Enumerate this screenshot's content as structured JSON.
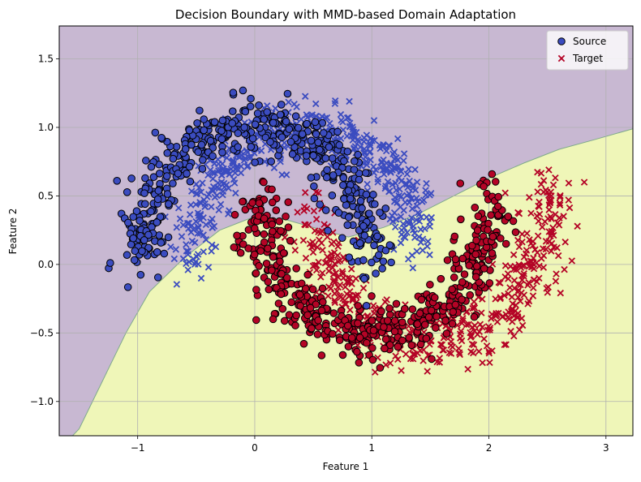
{
  "chart_data": {
    "type": "scatter",
    "title": "Decision Boundary with MMD-based Domain Adaptation",
    "xlabel": "Feature 1",
    "ylabel": "Feature 2",
    "xlim": [
      -1.67,
      3.23
    ],
    "ylim": [
      -1.25,
      1.74
    ],
    "xticks": [
      -1,
      0,
      1,
      2,
      3
    ],
    "yticks": [
      -1.0,
      -0.5,
      0.0,
      0.5,
      1.0,
      1.5
    ],
    "xtick_labels": [
      "−1",
      "0",
      "1",
      "2",
      "3"
    ],
    "ytick_labels": [
      "−1.0",
      "−0.5",
      "0.0",
      "0.5",
      "1.0",
      "1.5"
    ],
    "grid": true,
    "legend": {
      "placement": "top-right",
      "entries": [
        {
          "label": "Source",
          "marker": "circle"
        },
        {
          "label": "Target",
          "marker": "x"
        }
      ]
    },
    "colors": {
      "class0": "#3b4cc0",
      "class1": "#b40426",
      "region0": "#c8b8d2",
      "region1": "#eff6b8",
      "boundary": "#7faa8a",
      "grid": "#b0b0b0"
    },
    "decision_boundary": [
      [
        -1.67,
        -1.35
      ],
      [
        -1.5,
        -1.2
      ],
      [
        -1.3,
        -0.85
      ],
      [
        -1.1,
        -0.5
      ],
      [
        -0.9,
        -0.2
      ],
      [
        -0.6,
        0.05
      ],
      [
        -0.3,
        0.25
      ],
      [
        0.0,
        0.35
      ],
      [
        0.25,
        0.33
      ],
      [
        0.5,
        0.27
      ],
      [
        0.8,
        0.2
      ],
      [
        1.1,
        0.27
      ],
      [
        1.4,
        0.37
      ],
      [
        1.7,
        0.5
      ],
      [
        2.0,
        0.63
      ],
      [
        2.3,
        0.74
      ],
      [
        2.6,
        0.84
      ],
      [
        2.9,
        0.91
      ],
      [
        3.23,
        0.99
      ]
    ],
    "series": [
      {
        "name": "Source",
        "marker": "circle",
        "description_shape": "two interleaving moons",
        "class0_arc": {
          "center": [
            0.0,
            0.0
          ],
          "radius": 1.0,
          "theta_range_deg": [
            0,
            180
          ],
          "noise": 0.1
        },
        "class1_arc": {
          "center": [
            1.0,
            0.5
          ],
          "radius": 1.0,
          "theta_range_deg": [
            180,
            360
          ],
          "noise": 0.1
        },
        "sample_points_class0": [
          [
            -1.05,
            0.1
          ],
          [
            -0.95,
            0.45
          ],
          [
            -0.8,
            0.7
          ],
          [
            -0.6,
            0.85
          ],
          [
            -0.35,
            0.95
          ],
          [
            0.0,
            1.0
          ],
          [
            0.35,
            0.95
          ],
          [
            0.6,
            0.8
          ],
          [
            0.8,
            0.6
          ],
          [
            0.95,
            0.3
          ],
          [
            1.0,
            0.05
          ]
        ],
        "sample_points_class1": [
          [
            0.0,
            0.45
          ],
          [
            0.05,
            0.1
          ],
          [
            0.2,
            -0.2
          ],
          [
            0.5,
            -0.4
          ],
          [
            0.85,
            -0.5
          ],
          [
            1.2,
            -0.45
          ],
          [
            1.5,
            -0.35
          ],
          [
            1.8,
            -0.1
          ],
          [
            1.95,
            0.2
          ],
          [
            2.0,
            0.5
          ]
        ]
      },
      {
        "name": "Target",
        "marker": "x",
        "description_shape": "two interleaving moons, shifted and rotated",
        "class0_arc": {
          "center": [
            0.45,
            0.05
          ],
          "radius": 0.95,
          "theta_range_deg": [
            5,
            180
          ],
          "noise": 0.1
        },
        "class1_arc": {
          "center": [
            1.5,
            0.45
          ],
          "radius": 1.0,
          "theta_range_deg": [
            185,
            368
          ],
          "noise": 0.12
        },
        "sample_points_class0": [
          [
            -0.55,
            -0.1
          ],
          [
            -0.4,
            0.5
          ],
          [
            -0.1,
            0.85
          ],
          [
            0.3,
            1.0
          ],
          [
            0.7,
            1.0
          ],
          [
            1.0,
            0.85
          ],
          [
            1.25,
            0.6
          ],
          [
            1.4,
            0.3
          ],
          [
            1.5,
            0.05
          ]
        ],
        "sample_points_class1": [
          [
            0.4,
            0.4
          ],
          [
            0.55,
            0.05
          ],
          [
            0.8,
            -0.3
          ],
          [
            1.2,
            -0.45
          ],
          [
            1.6,
            -0.5
          ],
          [
            2.0,
            -0.35
          ],
          [
            2.3,
            -0.1
          ],
          [
            2.5,
            0.2
          ],
          [
            2.6,
            0.45
          ]
        ]
      }
    ]
  }
}
